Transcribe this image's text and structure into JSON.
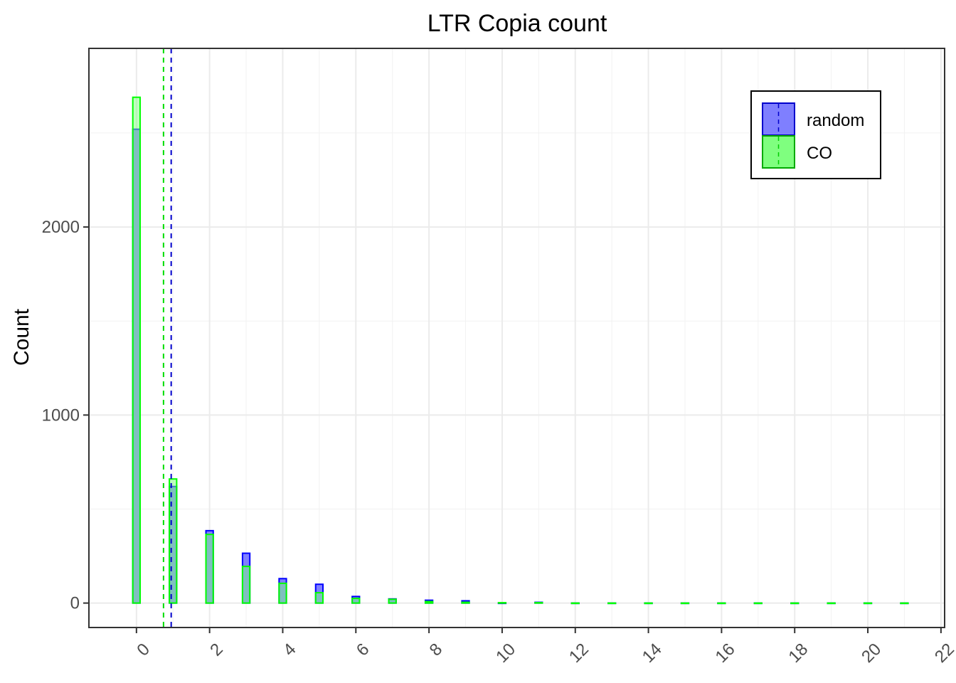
{
  "chart_data": {
    "type": "bar",
    "title": "LTR Copia count",
    "xlabel": "",
    "ylabel": "Count",
    "xlim": [
      -1.3,
      22.1
    ],
    "ylim": [
      -130,
      2950
    ],
    "x_ticks": [
      0,
      2,
      4,
      6,
      8,
      10,
      12,
      14,
      16,
      18,
      20,
      22
    ],
    "x_tick_labels": [
      "0",
      "2",
      "4",
      "6",
      "8",
      "10",
      "12",
      "14",
      "16",
      "18",
      "20",
      "22"
    ],
    "y_ticks": [
      0,
      1000,
      2000
    ],
    "y_tick_labels": [
      "0",
      "1000",
      "2000"
    ],
    "grid": true,
    "legend_position": "top-right",
    "series": [
      {
        "name": "random",
        "fill": "#7f7fff",
        "stroke": "#0000ff",
        "mean": 0.95,
        "x": [
          0,
          1,
          2,
          3,
          4,
          5,
          6,
          7,
          8,
          9,
          10,
          11,
          12,
          13,
          14,
          15,
          16,
          17,
          18,
          19,
          20,
          21
        ],
        "values": [
          2520,
          620,
          385,
          265,
          130,
          100,
          35,
          22,
          15,
          12,
          0,
          4,
          0,
          0,
          0,
          0,
          0,
          0,
          0,
          0,
          0,
          0
        ]
      },
      {
        "name": "CO",
        "fill": "#7fff7f",
        "stroke": "#00ff00",
        "mean": 0.74,
        "x": [
          0,
          1,
          2,
          3,
          4,
          5,
          6,
          7,
          8,
          9,
          10,
          11,
          12,
          13,
          14,
          15,
          16,
          17,
          18,
          19,
          20,
          21
        ],
        "values": [
          2690,
          660,
          365,
          195,
          105,
          55,
          25,
          20,
          8,
          4,
          2,
          2,
          0,
          0,
          0,
          0,
          0,
          0,
          0,
          0,
          0,
          0
        ]
      }
    ]
  }
}
